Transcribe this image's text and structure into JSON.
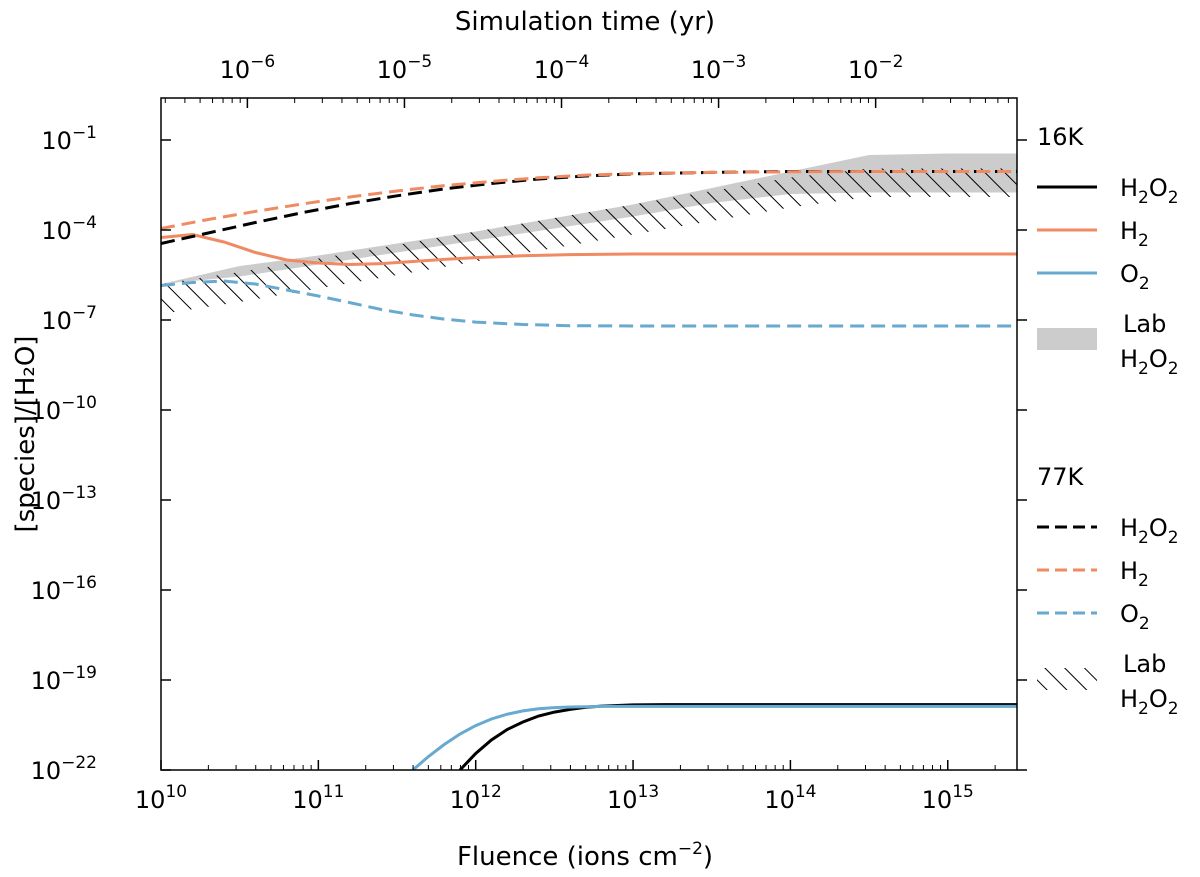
{
  "chart_data": {
    "type": "line",
    "title": "",
    "xlabel": "Fluence (ions cm",
    "xlabel_exp": "−2",
    "xlabel_end": ")",
    "ylabel": "[species]/[H₂O]",
    "xscale": "log",
    "yscale": "log",
    "xlim_log10": [
      10,
      15.44
    ],
    "ylim_log10": [
      -22,
      0.4
    ],
    "top_axis": {
      "label": "Simulation time (yr)",
      "xlim_log10": [
        -6.55,
        -1.1
      ],
      "ticks": [
        {
          "base": "10",
          "exp": "−6",
          "log": -6
        },
        {
          "base": "10",
          "exp": "−5",
          "log": -5
        },
        {
          "base": "10",
          "exp": "−4",
          "log": -4
        },
        {
          "base": "10",
          "exp": "−3",
          "log": -3
        },
        {
          "base": "10",
          "exp": "−2",
          "log": -2
        }
      ]
    },
    "x_ticks": [
      {
        "base": "10",
        "exp": "10",
        "log": 10
      },
      {
        "base": "10",
        "exp": "11",
        "log": 11
      },
      {
        "base": "10",
        "exp": "12",
        "log": 12
      },
      {
        "base": "10",
        "exp": "13",
        "log": 13
      },
      {
        "base": "10",
        "exp": "14",
        "log": 14
      },
      {
        "base": "10",
        "exp": "15",
        "log": 15
      }
    ],
    "y_ticks": [
      {
        "base": "10",
        "exp": "−1",
        "log": -1
      },
      {
        "base": "10",
        "exp": "−4",
        "log": -4
      },
      {
        "base": "10",
        "exp": "−7",
        "log": -7
      },
      {
        "base": "10",
        "exp": "−10",
        "log": -10
      },
      {
        "base": "10",
        "exp": "−13",
        "log": -13
      },
      {
        "base": "10",
        "exp": "−16",
        "log": -16
      },
      {
        "base": "10",
        "exp": "−19",
        "log": -19
      },
      {
        "base": "10",
        "exp": "−22",
        "log": -22
      }
    ],
    "colors": {
      "h2o2": "#000000",
      "h2": "#ef8a62",
      "o2": "#67a9cf",
      "lab_fill": "#cccccc",
      "hatch": "#000000"
    },
    "series": [
      {
        "name": "H2O2",
        "temp": "16K",
        "style": "solid",
        "color_key": "h2o2",
        "x_log10": [
          11.9,
          12.0,
          12.1,
          12.2,
          12.3,
          12.4,
          12.5,
          12.6,
          12.7,
          12.8,
          12.9,
          13.0,
          13.2,
          13.5,
          14.0,
          15.44
        ],
        "y_log10": [
          -22.0,
          -21.45,
          -21.0,
          -20.65,
          -20.4,
          -20.2,
          -20.07,
          -19.98,
          -19.91,
          -19.87,
          -19.85,
          -19.83,
          -19.82,
          -19.82,
          -19.82,
          -19.82
        ]
      },
      {
        "name": "H2",
        "temp": "16K",
        "style": "solid",
        "color_key": "h2",
        "x_log10": [
          10.0,
          10.2,
          10.4,
          10.6,
          10.8,
          11.0,
          11.2,
          11.4,
          11.6,
          11.8,
          12.0,
          12.3,
          12.6,
          13.0,
          13.5,
          14.0,
          15.44
        ],
        "y_log10": [
          -4.25,
          -4.15,
          -4.4,
          -4.75,
          -5.0,
          -5.1,
          -5.15,
          -5.12,
          -5.05,
          -4.98,
          -4.92,
          -4.86,
          -4.82,
          -4.8,
          -4.8,
          -4.8,
          -4.8
        ]
      },
      {
        "name": "O2",
        "temp": "16K",
        "style": "solid",
        "color_key": "o2",
        "x_log10": [
          11.6,
          11.7,
          11.8,
          11.9,
          12.0,
          12.1,
          12.2,
          12.3,
          12.4,
          12.5,
          12.6,
          12.7,
          12.8,
          13.0,
          13.5,
          15.44
        ],
        "y_log10": [
          -22.0,
          -21.55,
          -21.15,
          -20.8,
          -20.52,
          -20.3,
          -20.14,
          -20.03,
          -19.96,
          -19.92,
          -19.9,
          -19.89,
          -19.88,
          -19.88,
          -19.88,
          -19.88
        ]
      },
      {
        "name": "H2O2",
        "temp": "77K",
        "style": "dashed",
        "color_key": "h2o2",
        "x_log10": [
          10.0,
          10.3,
          10.6,
          10.9,
          11.2,
          11.5,
          11.8,
          12.1,
          12.4,
          12.7,
          13.0,
          13.5,
          14.0,
          14.5,
          15.0,
          15.44
        ],
        "y_log10": [
          -4.45,
          -4.1,
          -3.75,
          -3.42,
          -3.12,
          -2.86,
          -2.63,
          -2.45,
          -2.3,
          -2.2,
          -2.13,
          -2.08,
          -2.05,
          -2.05,
          -2.05,
          -2.05
        ]
      },
      {
        "name": "H2",
        "temp": "77K",
        "style": "dashed",
        "color_key": "h2",
        "x_log10": [
          10.0,
          10.3,
          10.6,
          10.9,
          11.2,
          11.5,
          11.8,
          12.1,
          12.4,
          12.7,
          13.0,
          13.5,
          14.0,
          14.5,
          15.0,
          15.44
        ],
        "y_log10": [
          -3.95,
          -3.65,
          -3.38,
          -3.13,
          -2.9,
          -2.7,
          -2.52,
          -2.38,
          -2.26,
          -2.17,
          -2.12,
          -2.08,
          -2.06,
          -2.05,
          -2.05,
          -2.05
        ]
      },
      {
        "name": "O2",
        "temp": "77K",
        "style": "dashed",
        "color_key": "o2",
        "x_log10": [
          10.0,
          10.2,
          10.4,
          10.6,
          10.8,
          11.0,
          11.2,
          11.4,
          11.6,
          11.8,
          12.0,
          12.3,
          12.6,
          13.0,
          13.5,
          14.0,
          15.44
        ],
        "y_log10": [
          -5.85,
          -5.75,
          -5.7,
          -5.8,
          -6.0,
          -6.2,
          -6.42,
          -6.65,
          -6.83,
          -6.97,
          -7.07,
          -7.15,
          -7.19,
          -7.2,
          -7.2,
          -7.2,
          -7.2
        ]
      }
    ],
    "bands": [
      {
        "name": "Lab H2O2",
        "temp": "16K",
        "style": "fill",
        "color_key": "lab_fill",
        "x_log10": [
          10.0,
          10.5,
          11.0,
          11.5,
          12.0,
          12.5,
          13.0,
          13.5,
          14.0,
          14.5,
          15.0,
          15.44
        ],
        "lower_log10": [
          -5.8,
          -5.55,
          -5.15,
          -4.75,
          -4.35,
          -3.95,
          -3.55,
          -3.1,
          -2.8,
          -2.75,
          -2.75,
          -2.75
        ],
        "upper_log10": [
          -5.8,
          -5.2,
          -4.85,
          -4.45,
          -4.05,
          -3.6,
          -3.15,
          -2.6,
          -2.05,
          -1.5,
          -1.45,
          -1.45
        ]
      },
      {
        "name": "Lab H2O2",
        "temp": "77K",
        "style": "hatch",
        "color_key": "hatch",
        "x_log10": [
          10.0,
          10.5,
          11.0,
          11.5,
          12.0,
          12.5,
          13.0,
          13.5,
          14.0,
          14.5,
          15.0,
          15.44
        ],
        "lower_log10": [
          -6.8,
          -6.4,
          -5.95,
          -5.5,
          -5.05,
          -4.6,
          -4.15,
          -3.7,
          -3.25,
          -2.9,
          -2.9,
          -2.9
        ],
        "upper_log10": [
          -5.8,
          -5.4,
          -4.95,
          -4.5,
          -4.05,
          -3.6,
          -3.15,
          -2.7,
          -2.25,
          -1.95,
          -1.95,
          -1.95
        ]
      }
    ],
    "legend": {
      "placement": "outside-right",
      "groups": [
        {
          "title": "16K",
          "items": [
            {
              "label_main": "H",
              "label_sub1": "2",
              "label_mid": "O",
              "label_sub2": "2",
              "style": "solid",
              "color_key": "h2o2"
            },
            {
              "label_main": "H",
              "label_sub1": "2",
              "style": "solid",
              "color_key": "h2"
            },
            {
              "label_main": "O",
              "label_sub1": "2",
              "style": "solid",
              "color_key": "o2"
            },
            {
              "label_line1": "Lab",
              "label_main": "H",
              "label_sub1": "2",
              "label_mid": "O",
              "label_sub2": "2",
              "style": "fill",
              "color_key": "lab_fill"
            }
          ]
        },
        {
          "title": "77K",
          "items": [
            {
              "label_main": "H",
              "label_sub1": "2",
              "label_mid": "O",
              "label_sub2": "2",
              "style": "dashed",
              "color_key": "h2o2"
            },
            {
              "label_main": "H",
              "label_sub1": "2",
              "style": "dashed",
              "color_key": "h2"
            },
            {
              "label_main": "O",
              "label_sub1": "2",
              "style": "dashed",
              "color_key": "o2"
            },
            {
              "label_line1": "Lab",
              "label_main": "H",
              "label_sub1": "2",
              "label_mid": "O",
              "label_sub2": "2",
              "style": "hatch",
              "color_key": "hatch"
            }
          ]
        }
      ]
    }
  }
}
